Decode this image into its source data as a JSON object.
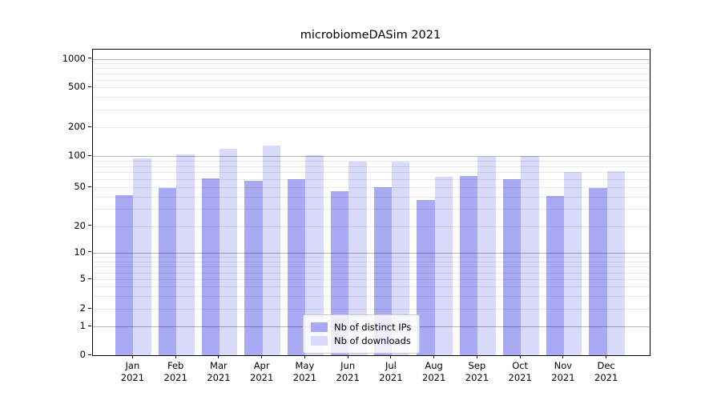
{
  "title": "microbiomeDASim 2021",
  "chart_data": {
    "type": "bar",
    "title": "microbiomeDASim 2021",
    "categories": [
      "Jan 2021",
      "Feb 2021",
      "Mar 2021",
      "Apr 2021",
      "May 2021",
      "Jun 2021",
      "Jul 2021",
      "Aug 2021",
      "Sep 2021",
      "Oct 2021",
      "Nov 2021",
      "Dec 2021"
    ],
    "x_tick_line1": [
      "Jan",
      "Feb",
      "Mar",
      "Apr",
      "May",
      "Jun",
      "Jul",
      "Aug",
      "Sep",
      "Oct",
      "Nov",
      "Dec"
    ],
    "x_tick_line2": "2021",
    "series": [
      {
        "name": "Nb of distinct IPs",
        "color": "#a9a9f4",
        "values": [
          42,
          49,
          61,
          58,
          60,
          46,
          50,
          37,
          65,
          60,
          41,
          49
        ]
      },
      {
        "name": "Nb of downloads",
        "color": "#d9d9fa",
        "values": [
          95,
          104,
          120,
          128,
          102,
          88,
          88,
          63,
          98,
          100,
          70,
          72
        ]
      }
    ],
    "y_ticks": [
      0,
      1,
      2,
      5,
      10,
      20,
      50,
      100,
      200,
      500,
      1000
    ],
    "y_scale": "symlog",
    "ylim": [
      0,
      1300
    ],
    "xlabel": "",
    "ylabel": "",
    "grid": "horizontal, major (1/10/100/1000) dark + minor light, drawn over bars",
    "legend_position": "lower center"
  },
  "colors": {
    "distinct_ips": "#a9a9f4",
    "downloads": "#d9d9fa",
    "axis": "#000000",
    "legend_border": "#cccccc",
    "background": "#ffffff"
  }
}
